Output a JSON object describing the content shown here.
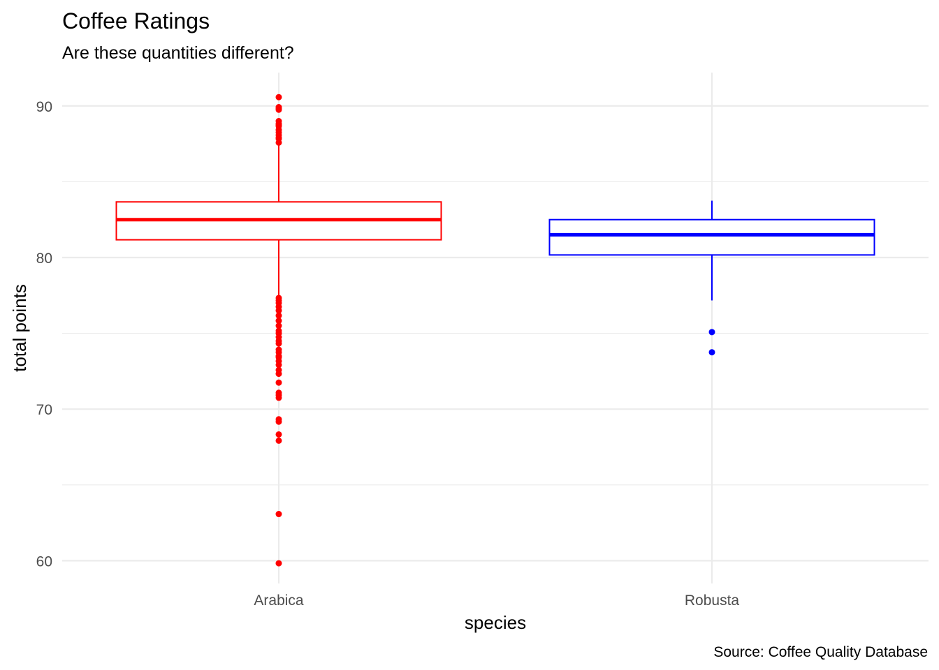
{
  "chart_data": {
    "type": "box",
    "title": "Coffee Ratings",
    "subtitle": "Are these quantities different?",
    "xlabel": "species",
    "ylabel": "total points",
    "caption": "Source: Coffee Quality Database",
    "ylim": [
      58.5,
      92.2
    ],
    "yticks": [
      60,
      70,
      80,
      90
    ],
    "yticks_minor": [
      65,
      75,
      85
    ],
    "grid": true,
    "categories": [
      "Arabica",
      "Robusta"
    ],
    "series": [
      {
        "category": "Arabica",
        "color": "#ff0000",
        "q1": 81.17,
        "median": 82.5,
        "q3": 83.67,
        "whisker_low": 77.5,
        "whisker_high": 87.5,
        "outliers": [
          90.58,
          89.92,
          89.83,
          89.75,
          89.0,
          88.83,
          88.75,
          88.67,
          88.42,
          88.25,
          88.08,
          87.92,
          87.83,
          87.58,
          77.33,
          77.17,
          77.0,
          76.75,
          76.5,
          76.17,
          75.83,
          75.5,
          75.17,
          75.0,
          74.75,
          74.5,
          74.33,
          73.92,
          73.75,
          73.5,
          73.42,
          73.17,
          72.92,
          72.58,
          72.33,
          71.75,
          71.08,
          70.92,
          70.75,
          69.33,
          69.17,
          68.33,
          67.92,
          63.08,
          59.83
        ]
      },
      {
        "category": "Robusta",
        "color": "#0000ff",
        "q1": 80.17,
        "median": 81.5,
        "q3": 82.5,
        "whisker_low": 77.17,
        "whisker_high": 83.75,
        "outliers": [
          75.08,
          73.75
        ]
      }
    ]
  }
}
